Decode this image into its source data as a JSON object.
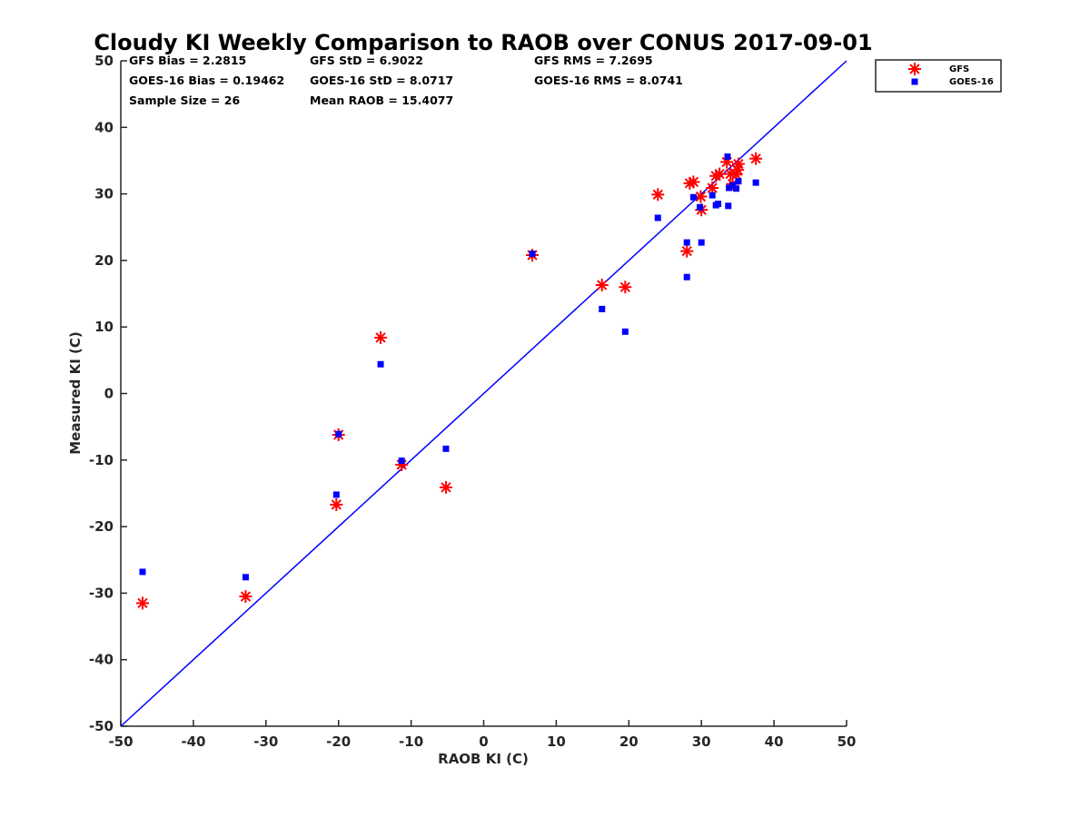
{
  "chart_data": {
    "type": "scatter",
    "title": "Cloudy KI Weekly Comparison to RAOB over CONUS 2017-09-01",
    "xlabel": "RAOB KI (C)",
    "ylabel": "Measured KI (C)",
    "xlim": [
      -50,
      50
    ],
    "ylim": [
      -50,
      50
    ],
    "xticks": [
      -50,
      -40,
      -30,
      -20,
      -10,
      0,
      10,
      20,
      30,
      40,
      50
    ],
    "yticks": [
      -50,
      -40,
      -30,
      -20,
      -10,
      0,
      10,
      20,
      30,
      40,
      50
    ],
    "grid": false,
    "legend_position": "outside-top-right",
    "colors": {
      "gfs": "#ff0000",
      "goes": "#0000ff",
      "one_to_one": "#0000ff"
    },
    "stats": [
      [
        "GFS Bias = 2.2815",
        "GFS StD = 6.9022",
        "GFS RMS = 7.2695"
      ],
      [
        "GOES-16 Bias = 0.19462",
        "GOES-16 StD = 8.0717",
        "GOES-16 RMS = 8.0741"
      ],
      [
        "Sample Size = 26",
        "Mean RAOB = 15.4077"
      ]
    ],
    "one_to_one_line": {
      "x": [
        -50,
        50
      ],
      "y": [
        -50,
        50
      ]
    },
    "series": [
      {
        "name": "GFS",
        "marker": "asterisk",
        "x": [
          -47.0,
          -32.8,
          -20.3,
          -20.0,
          -14.2,
          -11.3,
          -5.2,
          6.7,
          16.3,
          19.5,
          24.0,
          28.0,
          28.4,
          28.9,
          30.0,
          29.9,
          31.5,
          32.0,
          32.5,
          33.5,
          34.0,
          34.3,
          34.8,
          35.1,
          35.0,
          37.5
        ],
        "y": [
          -31.5,
          -30.5,
          -16.7,
          -6.2,
          8.4,
          -10.7,
          -14.1,
          20.8,
          16.3,
          16.0,
          29.9,
          21.4,
          31.6,
          31.8,
          27.6,
          29.6,
          30.9,
          32.7,
          33.0,
          34.8,
          33.0,
          31.5,
          32.9,
          34.5,
          33.6,
          35.3
        ]
      },
      {
        "name": "GOES-16",
        "marker": "square",
        "x": [
          -47.0,
          -32.8,
          -20.3,
          -20.0,
          -14.2,
          -11.3,
          -5.2,
          6.7,
          16.3,
          19.5,
          24.0,
          28.0,
          28.0,
          28.9,
          29.8,
          30.0,
          31.5,
          32.0,
          32.3,
          33.6,
          33.7,
          33.8,
          34.3,
          34.8,
          35.1,
          37.5
        ],
        "y": [
          -26.8,
          -27.6,
          -15.2,
          -6.1,
          4.4,
          -10.1,
          -8.3,
          21.0,
          12.7,
          9.3,
          26.4,
          22.7,
          17.5,
          29.5,
          28.0,
          22.7,
          29.8,
          28.3,
          28.5,
          35.6,
          28.2,
          30.9,
          31.3,
          30.8,
          31.9,
          31.7
        ]
      }
    ]
  }
}
